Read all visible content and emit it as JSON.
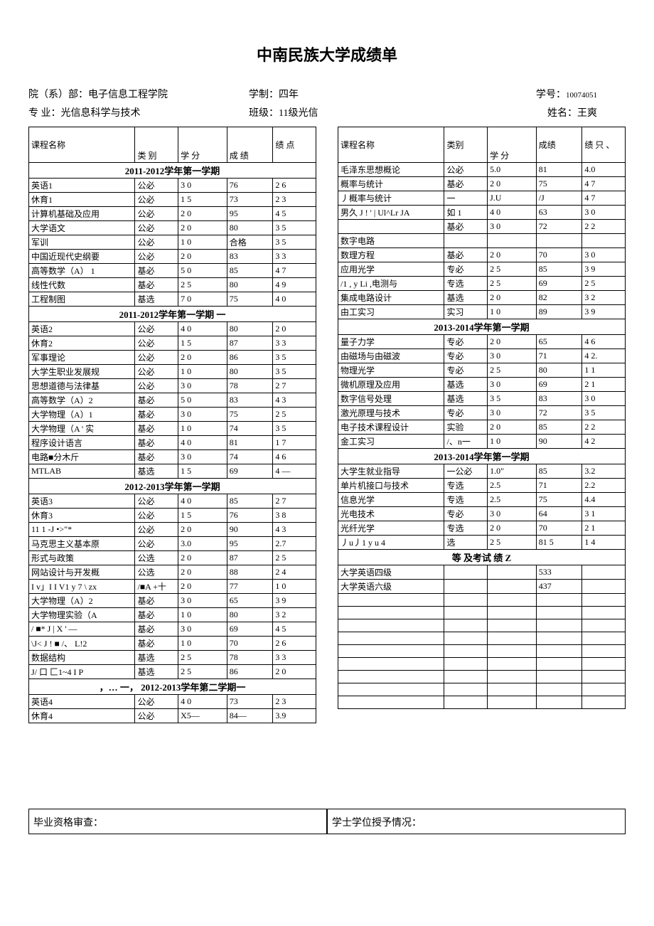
{
  "title": "中南民族大学成绩单",
  "info": {
    "dept_label": "院（系）部：",
    "dept": "电子信息工程学院",
    "duration_label": "学制：",
    "duration": "四年",
    "sid_label": "学号：",
    "sid": "10074051",
    "major_label": "专 业：",
    "major": "光信息科学与技术",
    "class_label": "班级：",
    "class": "11级光信",
    "name_label": "姓名：",
    "name": "王爽"
  },
  "headers": {
    "course": "课程名称",
    "type": "类 别",
    "credit": "学 分",
    "score": "成 绩",
    "gpa": "绩 点",
    "type2": "类别",
    "credit2": "学 分",
    "score2": "成绩",
    "gpa2": "绩 只 、"
  },
  "left_sections": [
    {
      "header": "2011-2012学年第一学期",
      "rows": [
        [
          "英语1",
          "公必",
          "3 0",
          "76",
          "2 6"
        ],
        [
          "休育1",
          "公必",
          "1 5",
          "73",
          "2 3"
        ],
        [
          "计算机基础及应用",
          "公必",
          "2 0",
          "95",
          "4 5"
        ],
        [
          "大学语文",
          "公必",
          "2 0",
          "80",
          "3 5"
        ],
        [
          "军训",
          "公必",
          "1 0",
          "合格",
          "3 5"
        ],
        [
          "中国近现代史纲要",
          "公必",
          "2 0",
          "83",
          "3 3"
        ],
        [
          "高等数学（A） 1",
          "基必",
          "5 0",
          "85",
          "4 7"
        ],
        [
          "线性代数",
          "基必",
          "2 5",
          "80",
          "4 9"
        ],
        [
          "工程制图",
          "基选",
          "7 0",
          "75",
          "4 0"
        ]
      ]
    },
    {
      "header": "2011-2012学年第一学期    一",
      "rows": [
        [
          "英语2",
          "公必",
          "4 0",
          "80",
          "2 0"
        ],
        [
          "休育2",
          "公必",
          "1 5",
          "87",
          "3 3"
        ],
        [
          "军事理论",
          "公必",
          "2 0",
          "86",
          "3 5"
        ],
        [
          "大学生职业发展规",
          "公必",
          "1 0",
          "80",
          "3 5"
        ],
        [
          "思想道德与法律基",
          "公必",
          "3 0",
          "78",
          "2 7"
        ],
        [
          "高等数学（A）2",
          "基必",
          "5 0",
          "83",
          "4 3"
        ],
        [
          "大学物理（A）1",
          "基必",
          "3 0",
          "75",
          "2 5"
        ],
        [
          "大学物理（A ' 实",
          "基必",
          "1 0",
          "74",
          "3 5"
        ],
        [
          "程序设计语言",
          "基必",
          "4 0",
          "81",
          "1 7"
        ],
        [
          "电路■分木斤",
          "基必",
          "3 0",
          "74",
          "4 6"
        ],
        [
          "MTLAB",
          "基选",
          "1 5",
          "69",
          "4 —"
        ]
      ]
    },
    {
      "header": "2012-2013学年第一学期",
      "rows": [
        [
          "英语3",
          "公必",
          "4 0",
          "85",
          "2 7"
        ],
        [
          "休育3",
          "公必",
          "1 5",
          "76",
          "3 8"
        ],
        [
          "11 1 -J •>\"*",
          "公必",
          "2 0",
          "90",
          "4 3"
        ],
        [
          "马克思主义基本原",
          "公必",
          "3.0",
          "95",
          "2.7"
        ],
        [
          "形式与政策",
          "公选",
          "2 0",
          "87",
          "2 5"
        ],
        [
          "网站设计与开发概",
          "公选",
          "2 0",
          "88",
          "2 4"
        ],
        [
          "I v」I I V1 y 7 \\ zx",
          "/■A +十",
          "2 0",
          "77",
          "1 0"
        ],
        [
          "大学物理（A）2",
          "基必",
          "3 0",
          "65",
          "3 9"
        ],
        [
          "大学物理实验（A",
          "基必",
          "1 0",
          "80",
          "3 2"
        ],
        [
          "/ ■* J    | X ' —",
          "基必",
          "3 0",
          "69",
          "4 5"
        ],
        [
          "\\J< J ! ■ /、   L!2",
          "基必",
          "1 0",
          "70",
          "2 6"
        ],
        [
          "数据结构",
          "基选",
          "2 5",
          "78",
          "3 3"
        ],
        [
          "   J/ 口 匚1~4 I P",
          "基选",
          "2 5",
          "86",
          "2 0"
        ]
      ]
    },
    {
      "header": "，…    一，   2012-2013学年第二学期一",
      "rows": [
        [
          "英语4",
          "公必",
          "4 0",
          "73",
          "2 3"
        ],
        [
          "休育4",
          "公必",
          "X5—",
          "84—",
          "3.9"
        ]
      ]
    }
  ],
  "right_sections": [
    {
      "header": null,
      "rows": [
        [
          "毛泽东思想概论",
          "公必",
          "5.0",
          "81",
          "4.0"
        ],
        [
          "概率与统计",
          "基必",
          "2 0",
          "75",
          "4 7"
        ],
        [
          "丿概率与统计",
          "一",
          "J.U",
          "/J",
          "4 7"
        ],
        [
          "男久 J ! ' | Ul^Lr JA",
          "如 1",
          "4 0",
          "63",
          "3 0"
        ],
        [
          "",
          "基必",
          "3 0",
          "72",
          "2 2"
        ],
        [
          "数字电路",
          "",
          "",
          "",
          ""
        ],
        [
          "数理方程",
          "基必",
          "2 0",
          "70",
          "3 0"
        ],
        [
          "应用光学",
          "专必",
          "2 5",
          "85",
          "3 9"
        ],
        [
          "/1 , y Li ,电测与",
          "专选",
          "2 5",
          "69",
          "2 5"
        ],
        [
          "集成电路设计",
          "基选",
          "2 0",
          "82",
          "3 2"
        ],
        [
          "由工实习",
          "实习",
          "1 0",
          "89",
          "3 9"
        ]
      ]
    },
    {
      "header": "2013-2014学年第一学期",
      "rows": [
        [
          "量子力学",
          "专必",
          "2 0",
          "65",
          "4 6"
        ],
        [
          "由磁场与由磁波",
          "专必",
          "3 0",
          "71",
          "4 2."
        ],
        [
          "物理光学",
          "专必",
          "2 5",
          "80",
          "1 1"
        ],
        [
          "微机原理及应用",
          "基选",
          "3 0",
          "69",
          "2 1"
        ],
        [
          "数字信号处理",
          "基选",
          "3 5",
          "83",
          "3 0"
        ],
        [
          "激光原理与技术",
          "专必",
          "3 0",
          "72",
          "3 5"
        ],
        [
          "电子技术课程设计",
          "实验",
          "2 0",
          "85",
          "2 2"
        ],
        [
          "金工实习",
          "/、n一",
          "1 0",
          "90",
          "4 2"
        ]
      ]
    },
    {
      "header": "2013-2014学年第一学期",
      "rows": [
        [
          "大学生就业指导",
          "一公必",
          "1.0\"",
          "85",
          "3.2"
        ],
        [
          "单片机接口与技术",
          "专选",
          "2.5",
          "71",
          "2.2"
        ],
        [
          "信息光学",
          "专选",
          "2.5",
          "75",
          "4.4"
        ],
        [
          "光电技术",
          "专必",
          "3 0",
          "64",
          "3 1"
        ],
        [
          "光纤光学",
          "专选",
          "2 0",
          "70",
          "2 1"
        ],
        [
          "丿u丿1 y u 4",
          "选",
          "2 5",
          "81 5",
          "1 4"
        ]
      ]
    },
    {
      "header": "等 及考试 绩 Z",
      "rows": [
        [
          "大学英语四级",
          "",
          "",
          "533",
          ""
        ],
        [
          "大学英语六级",
          "",
          "",
          "437",
          ""
        ],
        [
          "",
          "",
          "",
          "",
          ""
        ],
        [
          "",
          "",
          "",
          "",
          ""
        ],
        [
          "",
          "",
          "",
          "",
          ""
        ],
        [
          "",
          "",
          "",
          "",
          ""
        ],
        [
          "",
          "",
          "",
          "",
          ""
        ],
        [
          "",
          "",
          "",
          "",
          ""
        ],
        [
          "",
          "",
          "",
          "",
          ""
        ],
        [
          "",
          "",
          "",
          "",
          ""
        ],
        [
          "",
          "",
          "",
          "",
          ""
        ]
      ]
    }
  ],
  "footer": {
    "left": "毕业资格审查：",
    "right": "学士学位授予情况："
  }
}
